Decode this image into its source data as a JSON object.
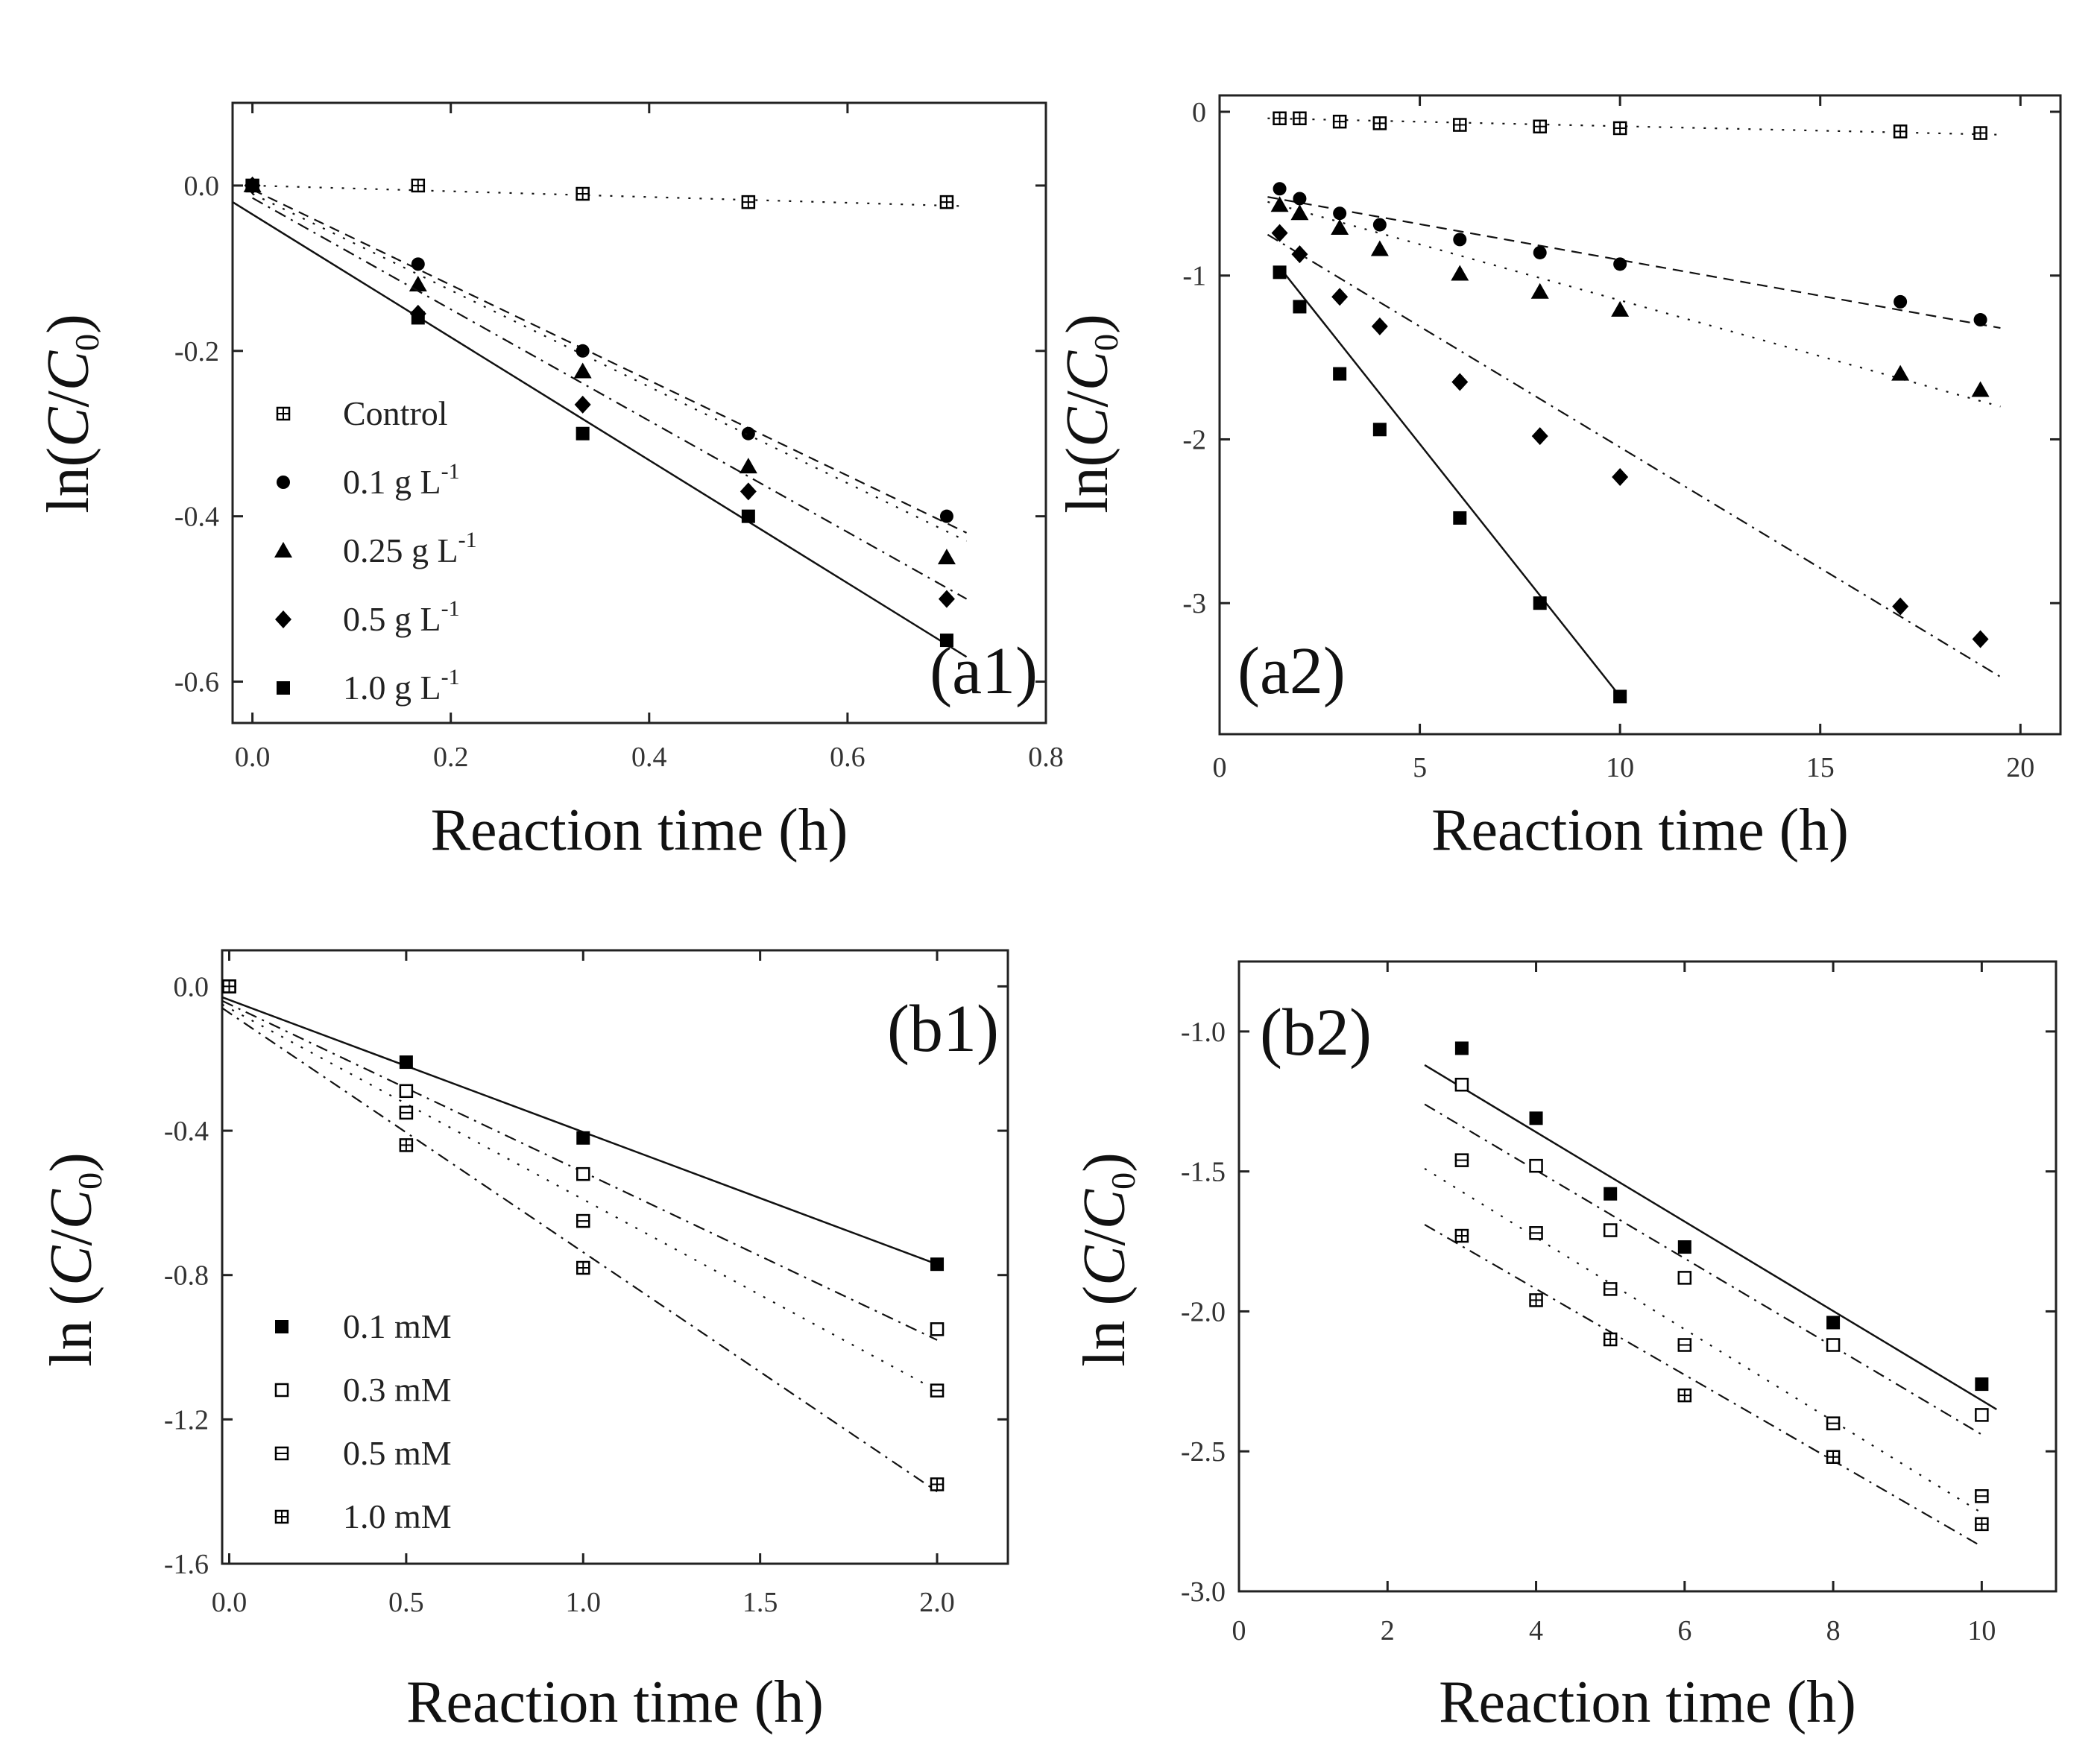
{
  "chart_data": [
    {
      "type": "scatter",
      "panel_label": "(a1)",
      "xlabel": "Reaction time (h)",
      "ylabel": {
        "prefix": "ln(",
        "var1": "C",
        "slash": "/",
        "var2": "C",
        "sub": "0",
        "suffix": ")"
      },
      "xlim": [
        -0.02,
        0.8
      ],
      "ylim": [
        -0.65,
        0.1
      ],
      "xticks": [
        "0.0",
        "0.2",
        "0.4",
        "0.6",
        "0.8"
      ],
      "xtick_values": [
        0.0,
        0.2,
        0.4,
        0.6,
        0.8
      ],
      "yticks": [
        "0.0",
        "-0.2",
        "-0.4",
        "-0.6"
      ],
      "ytick_values": [
        0.0,
        -0.2,
        -0.4,
        -0.6
      ],
      "legend_position": "bottom-left",
      "series": [
        {
          "name": "Control",
          "legend": {
            "main": "Control",
            "sup": ""
          },
          "marker": "boxplus",
          "line": "dot",
          "x": [
            0,
            0.167,
            0.333,
            0.5,
            0.7
          ],
          "y": [
            0.0,
            0.0,
            -0.01,
            -0.02,
            -0.02
          ],
          "fit": [
            [
              0,
              0.0
            ],
            [
              0.72,
              -0.025
            ]
          ]
        },
        {
          "name": "0.1 g L-1",
          "legend": {
            "main": "0.1 g L",
            "sup": "-1"
          },
          "marker": "circle",
          "line": "dash",
          "x": [
            0,
            0.167,
            0.333,
            0.5,
            0.7
          ],
          "y": [
            0.0,
            -0.095,
            -0.2,
            -0.3,
            -0.4
          ],
          "fit": [
            [
              0,
              -0.005
            ],
            [
              0.72,
              -0.42
            ]
          ]
        },
        {
          "name": "0.25 g L-1",
          "legend": {
            "main": "0.25 g L",
            "sup": "-1"
          },
          "marker": "triangle",
          "line": "dot",
          "x": [
            0,
            0.167,
            0.333,
            0.5,
            0.7
          ],
          "y": [
            0.0,
            -0.12,
            -0.225,
            -0.34,
            -0.45
          ],
          "fit": [
            [
              0,
              -0.01
            ],
            [
              0.72,
              -0.43
            ]
          ]
        },
        {
          "name": "0.5 g L-1",
          "legend": {
            "main": "0.5 g L",
            "sup": "-1"
          },
          "marker": "diamond",
          "line": "dashdot",
          "x": [
            0,
            0.167,
            0.333,
            0.5,
            0.7
          ],
          "y": [
            0.0,
            -0.155,
            -0.265,
            -0.37,
            -0.5
          ],
          "fit": [
            [
              0,
              -0.015
            ],
            [
              0.72,
              -0.5
            ]
          ]
        },
        {
          "name": "1.0 g L-1",
          "legend": {
            "main": "1.0 g L",
            "sup": "-1"
          },
          "marker": "square",
          "line": "solid",
          "x": [
            0,
            0.167,
            0.333,
            0.5,
            0.7
          ],
          "y": [
            0.0,
            -0.16,
            -0.3,
            -0.4,
            -0.55
          ],
          "fit": [
            [
              -0.02,
              -0.02
            ],
            [
              0.72,
              -0.57
            ]
          ]
        }
      ]
    },
    {
      "type": "scatter",
      "panel_label": "(a2)",
      "xlabel": "Reaction time (h)",
      "ylabel": {
        "prefix": "ln(",
        "var1": "C",
        "slash": "/",
        "var2": "C",
        "sub": "0",
        "suffix": ")"
      },
      "xlim": [
        0,
        21
      ],
      "ylim": [
        -3.8,
        0.1
      ],
      "xticks": [
        "0",
        "5",
        "10",
        "15",
        "20"
      ],
      "xtick_values": [
        0,
        5,
        10,
        15,
        20
      ],
      "yticks": [
        "0",
        "-1",
        "-2",
        "-3"
      ],
      "ytick_values": [
        0,
        -1,
        -2,
        -3
      ],
      "legend_position": "none",
      "series": [
        {
          "name": "Control",
          "marker": "boxplus",
          "line": "dot",
          "x": [
            1.5,
            2,
            3,
            4,
            6,
            8,
            10,
            17,
            19
          ],
          "y": [
            -0.04,
            -0.04,
            -0.06,
            -0.07,
            -0.08,
            -0.09,
            -0.1,
            -0.12,
            -0.13
          ],
          "fit": [
            [
              1.2,
              -0.04
            ],
            [
              19.5,
              -0.14
            ]
          ]
        },
        {
          "name": "0.1 g L-1",
          "marker": "circle",
          "line": "dash",
          "x": [
            1.5,
            2,
            3,
            4,
            6,
            8,
            10,
            17,
            19
          ],
          "y": [
            -0.47,
            -0.53,
            -0.62,
            -0.69,
            -0.78,
            -0.86,
            -0.93,
            -1.16,
            -1.27
          ],
          "fit": [
            [
              1.2,
              -0.52
            ],
            [
              19.5,
              -1.32
            ]
          ]
        },
        {
          "name": "0.25 g L-1",
          "marker": "triangle",
          "line": "dot",
          "x": [
            1.5,
            2,
            3,
            4,
            6,
            8,
            10,
            17,
            19
          ],
          "y": [
            -0.57,
            -0.62,
            -0.71,
            -0.84,
            -0.99,
            -1.1,
            -1.21,
            -1.6,
            -1.7
          ],
          "fit": [
            [
              1.2,
              -0.55
            ],
            [
              19.5,
              -1.8
            ]
          ]
        },
        {
          "name": "0.5 g L-1",
          "marker": "diamond",
          "line": "dashdot",
          "x": [
            1.5,
            2,
            3,
            4,
            6,
            8,
            10,
            17,
            19
          ],
          "y": [
            -0.74,
            -0.87,
            -1.13,
            -1.31,
            -1.65,
            -1.98,
            -2.23,
            -3.02,
            -3.22
          ],
          "fit": [
            [
              1.2,
              -0.75
            ],
            [
              19.5,
              -3.45
            ]
          ]
        },
        {
          "name": "1.0 g L-1",
          "marker": "square",
          "line": "solid",
          "x": [
            1.5,
            2,
            3,
            4,
            6,
            8,
            10
          ],
          "y": [
            -0.98,
            -1.19,
            -1.6,
            -1.94,
            -2.48,
            -3.0,
            -3.57
          ],
          "fit": [
            [
              1.5,
              -0.95
            ],
            [
              10.1,
              -3.6
            ]
          ]
        }
      ]
    },
    {
      "type": "scatter",
      "panel_label": "(b1)",
      "xlabel": "Reaction time (h)",
      "ylabel": {
        "prefix": "ln (",
        "var1": "C",
        "slash": "/",
        "var2": "C",
        "sub": "0",
        "suffix": ")"
      },
      "xlim": [
        -0.02,
        2.2
      ],
      "ylim": [
        -1.6,
        0.1
      ],
      "xticks": [
        "0.0",
        "0.5",
        "1.0",
        "1.5",
        "2.0"
      ],
      "xtick_values": [
        0.0,
        0.5,
        1.0,
        1.5,
        2.0
      ],
      "yticks": [
        "0.0",
        "-0.4",
        "-0.8",
        "-1.2",
        "-1.6"
      ],
      "ytick_values": [
        0.0,
        -0.4,
        -0.8,
        -1.2,
        -1.6
      ],
      "legend_position": "bottom-left",
      "series": [
        {
          "name": "0.1 mM",
          "legend": {
            "main": "0.1 mM",
            "sup": ""
          },
          "marker": "square",
          "line": "solid",
          "x": [
            0,
            0.5,
            1.0,
            2.0
          ],
          "y": [
            0.0,
            -0.21,
            -0.42,
            -0.77
          ],
          "fit": [
            [
              -0.02,
              -0.03
            ],
            [
              2.0,
              -0.77
            ]
          ]
        },
        {
          "name": "0.3 mM",
          "legend": {
            "main": "0.3 mM",
            "sup": ""
          },
          "marker": "open-square",
          "line": "dashdot",
          "x": [
            0,
            0.5,
            1.0,
            2.0
          ],
          "y": [
            0.0,
            -0.29,
            -0.52,
            -0.95
          ],
          "fit": [
            [
              -0.02,
              -0.04
            ],
            [
              2.0,
              -0.98
            ]
          ]
        },
        {
          "name": "0.5 mM",
          "legend": {
            "main": "0.5 mM",
            "sup": ""
          },
          "marker": "boxminus",
          "line": "dot",
          "x": [
            0,
            0.5,
            1.0,
            2.0
          ],
          "y": [
            0.0,
            -0.35,
            -0.65,
            -1.12
          ],
          "fit": [
            [
              -0.02,
              -0.05
            ],
            [
              2.0,
              -1.12
            ]
          ]
        },
        {
          "name": "1.0 mM",
          "legend": {
            "main": "1.0 mM",
            "sup": ""
          },
          "marker": "boxplus",
          "line": "dashdot",
          "x": [
            0,
            0.5,
            1.0,
            2.0
          ],
          "y": [
            0.0,
            -0.44,
            -0.78,
            -1.38
          ],
          "fit": [
            [
              -0.02,
              -0.06
            ],
            [
              2.0,
              -1.4
            ]
          ]
        }
      ]
    },
    {
      "type": "scatter",
      "panel_label": "(b2)",
      "xlabel": "Reaction time (h)",
      "ylabel": {
        "prefix": "ln (",
        "var1": "C",
        "slash": "/",
        "var2": "C",
        "sub": "0",
        "suffix": ")"
      },
      "xlim": [
        0,
        11
      ],
      "ylim": [
        -3.0,
        -0.75
      ],
      "xticks": [
        "0",
        "2",
        "4",
        "6",
        "8",
        "10"
      ],
      "xtick_values": [
        0,
        2,
        4,
        6,
        8,
        10
      ],
      "yticks": [
        "-1.0",
        "-1.5",
        "-2.0",
        "-2.5",
        "-3.0"
      ],
      "ytick_values": [
        -1.0,
        -1.5,
        -2.0,
        -2.5,
        -3.0
      ],
      "legend_position": "none",
      "series": [
        {
          "name": "0.1 mM",
          "marker": "square",
          "line": "solid",
          "x": [
            3,
            4,
            5,
            6,
            8,
            10
          ],
          "y": [
            -1.06,
            -1.31,
            -1.58,
            -1.77,
            -2.04,
            -2.26
          ],
          "fit": [
            [
              2.5,
              -1.12
            ],
            [
              10.2,
              -2.35
            ]
          ]
        },
        {
          "name": "0.3 mM",
          "marker": "open-square",
          "line": "dashdot",
          "x": [
            3,
            4,
            5,
            6,
            8,
            10
          ],
          "y": [
            -1.19,
            -1.48,
            -1.71,
            -1.88,
            -2.12,
            -2.37
          ],
          "fit": [
            [
              2.5,
              -1.26
            ],
            [
              10.0,
              -2.44
            ]
          ]
        },
        {
          "name": "0.5 mM",
          "marker": "boxminus",
          "line": "dot",
          "x": [
            3,
            4,
            5,
            6,
            8,
            10
          ],
          "y": [
            -1.46,
            -1.72,
            -1.92,
            -2.12,
            -2.4,
            -2.66
          ],
          "fit": [
            [
              2.5,
              -1.49
            ],
            [
              10.0,
              -2.72
            ]
          ]
        },
        {
          "name": "1.0 mM",
          "marker": "boxplus",
          "line": "dashdot",
          "x": [
            3,
            4,
            5,
            6,
            8,
            10
          ],
          "y": [
            -1.73,
            -1.96,
            -2.1,
            -2.3,
            -2.52,
            -2.76
          ],
          "fit": [
            [
              2.5,
              -1.69
            ],
            [
              10.0,
              -2.84
            ]
          ]
        }
      ]
    }
  ]
}
